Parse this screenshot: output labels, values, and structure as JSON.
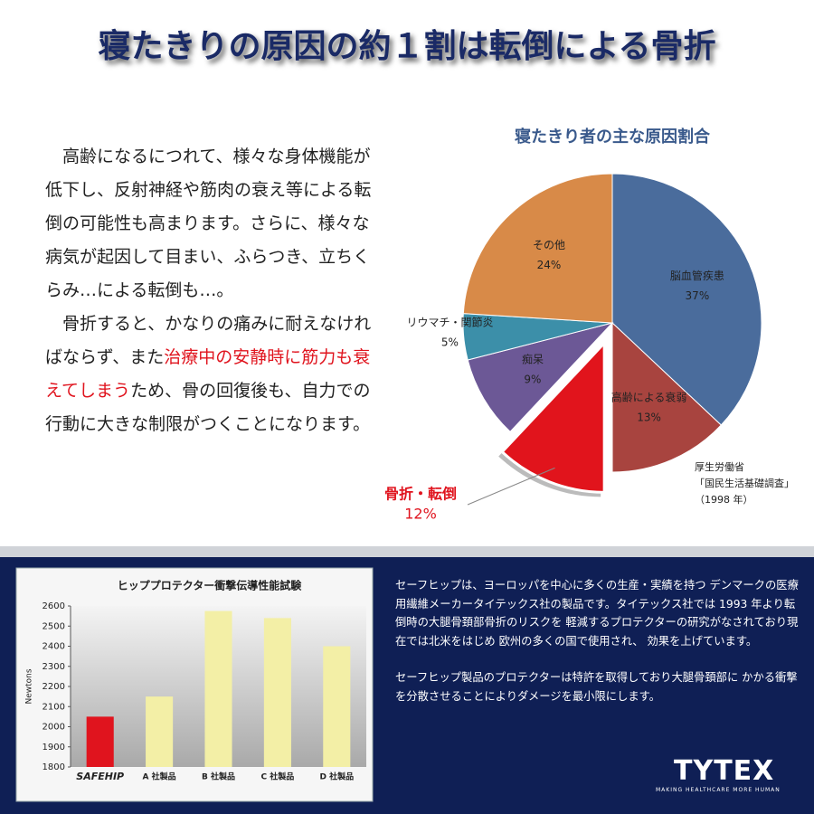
{
  "header": {
    "title": "寝たきりの原因の約１割は転倒による骨折"
  },
  "body": {
    "paragraphs": [
      {
        "parts": [
          {
            "text": "高齢になるにつれて、様々な身体機能が低下し、反射神経や筋肉の衰え等による転倒の可能性も高まります。さらに、様々な病気が起因して目まい、ふらつき、立ちくらみ…による転倒も…。",
            "red": false
          }
        ]
      },
      {
        "parts": [
          {
            "text": "骨折すると、かなりの痛みに耐えなければならず、また",
            "red": false
          },
          {
            "text": "治療中の安静時に筋力も衰えてしまう",
            "red": true
          },
          {
            "text": "ため、骨の回復後も、自力での行動に大きな制限がつくことになります。",
            "red": false
          }
        ]
      }
    ]
  },
  "description": {
    "paragraphs": [
      "セーフヒップは、ヨーロッパを中心に多くの生産・実績を持つ デンマークの医療用繊維メーカータイテックス社の製品です。タイテックス社では 1993 年より転倒時の大腿骨頚部骨折のリスクを 軽減するプロテクターの研究がなされており現在では北米をはじめ 欧州の多くの国で使用され、 効果を上げています。",
      "セーフヒップ製品のプロテクターは特許を取得しており大腿骨頚部に かかる衝撃を分散させることによりダメージを最小限にします。"
    ]
  },
  "logo": {
    "name": "TYTEX",
    "tagline": "MAKING HEALTHCARE MORE HUMAN"
  },
  "chart_data": [
    {
      "type": "pie",
      "title": "寝たきり者の主な原因割合",
      "categories": [
        "脳血管疾患",
        "高齢による衰弱",
        "骨折・転倒",
        "痴呆",
        "リウマチ・関節炎",
        "その他"
      ],
      "values": [
        37,
        13,
        12,
        9,
        5,
        24
      ],
      "value_labels": [
        "37%",
        "13%",
        "12%",
        "9%",
        "5%",
        "24%"
      ],
      "colors": [
        "#4a6c9c",
        "#a8443f",
        "#e1141c",
        "#6c5896",
        "#3c8fa9",
        "#d88a48"
      ],
      "exploded": [
        false,
        false,
        true,
        false,
        false,
        false
      ],
      "source": [
        "厚生労働省",
        "「国民生活基礎調査」",
        "（1998 年）"
      ]
    },
    {
      "type": "bar",
      "title": "ヒッププロテクター衝撃伝導性能試験",
      "y_label": "Newtons",
      "categories": [
        "SAFEHIP",
        "A 社製品",
        "B 社製品",
        "C 社製品",
        "D 社製品"
      ],
      "values": [
        2050,
        2150,
        2575,
        2540,
        2400
      ],
      "colors": [
        "#e0141e",
        "#f3efa6",
        "#f3efa6",
        "#f3efa6",
        "#f3efa6"
      ],
      "ylim": [
        1800,
        2600
      ],
      "yticks": [
        1800,
        1900,
        2000,
        2100,
        2200,
        2300,
        2400,
        2500,
        2600
      ]
    }
  ]
}
